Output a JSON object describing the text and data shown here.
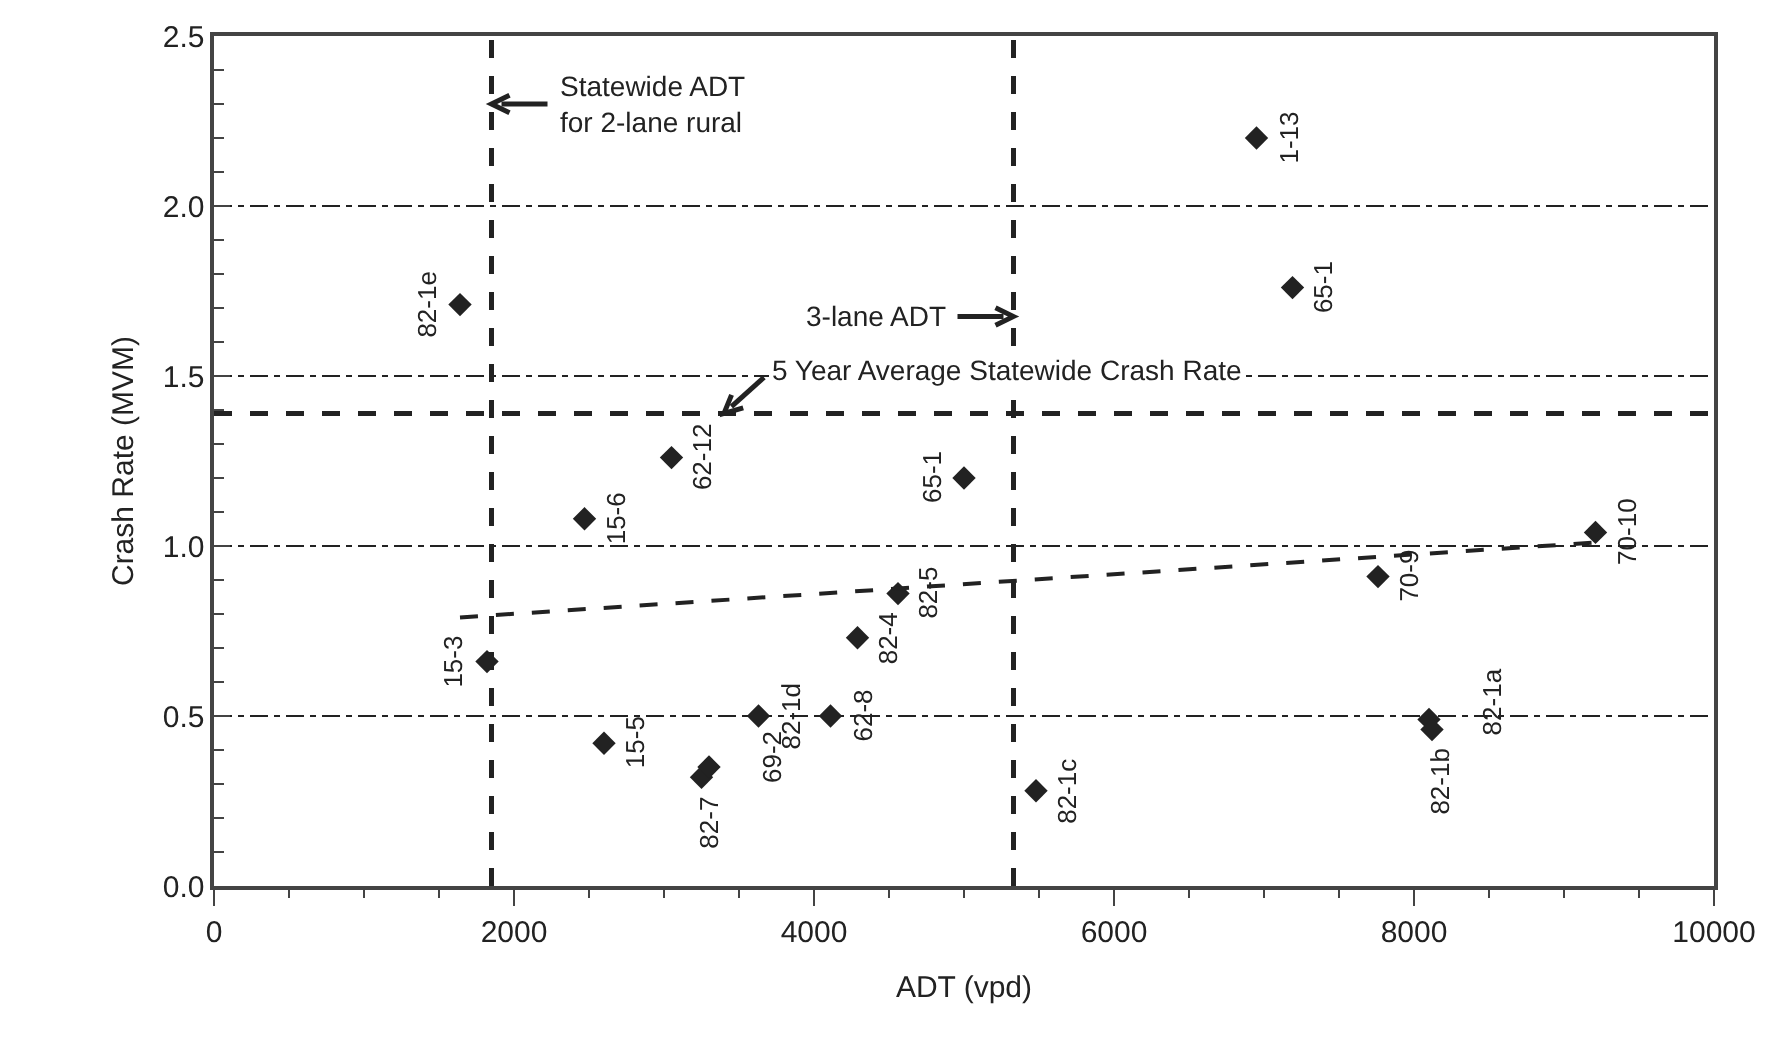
{
  "chart_data": {
    "type": "scatter",
    "xlabel": "ADT (vpd)",
    "ylabel": "Crash Rate (MVM)",
    "xlim": [
      0,
      10000
    ],
    "xticks": [
      0,
      2000,
      4000,
      6000,
      8000,
      10000
    ],
    "ylim": [
      0,
      2.5
    ],
    "yticks": [
      {
        "value": 0,
        "label": "0.0"
      },
      {
        "value": 0.5,
        "label": "0.5"
      },
      {
        "value": 1,
        "label": "1.0"
      },
      {
        "value": 1.5,
        "label": "1.5"
      },
      {
        "value": 2,
        "label": "2.0"
      },
      {
        "value": 2.5,
        "label": "2.5"
      }
    ],
    "grid": "y",
    "marker": "diamond",
    "series": [
      {
        "color": "#222222",
        "x": [
          1640,
          6950,
          7190,
          3050,
          5000,
          2470,
          1820,
          2600,
          3250,
          3300,
          3630,
          4110,
          4290,
          4560,
          5480,
          7760,
          8100,
          8120,
          9210
        ],
        "values": [
          1.71,
          2.2,
          1.76,
          1.26,
          1.2,
          1.08,
          0.66,
          0.42,
          0.32,
          0.35,
          0.5,
          0.5,
          0.73,
          0.86,
          0.28,
          0.91,
          0.49,
          0.46,
          1.04
        ],
        "value_labels": [
          "82-1e",
          "1-13",
          "65-1",
          "62-12",
          "65-1",
          "15-6",
          "15-3",
          "15-5",
          "82-7",
          "69-2",
          "82-1d",
          "62-8",
          "82-4",
          "82-5",
          "82-1c",
          "70-9",
          "82-1a",
          "82-1b",
          "70-10"
        ]
      },
      {
        "type": "line",
        "color": "#222222",
        "line_style": "dashed",
        "marker": "none",
        "x": [
          1640,
          9200
        ],
        "values": [
          0.79,
          1.01
        ]
      }
    ],
    "ref_lines": [
      {
        "axis": "x",
        "value": 1850,
        "color": "#222222",
        "line_style": "dashed",
        "label": "Statewide ADT\nfor 2-lane rural"
      },
      {
        "axis": "x",
        "value": 5330,
        "color": "#222222",
        "line_style": "dashed",
        "label": "3-lane ADT"
      },
      {
        "axis": "y",
        "value": 1.39,
        "color": "#222222",
        "line_style": "dashed",
        "label": "5 Year Average Statewide Crash Rate"
      }
    ]
  }
}
